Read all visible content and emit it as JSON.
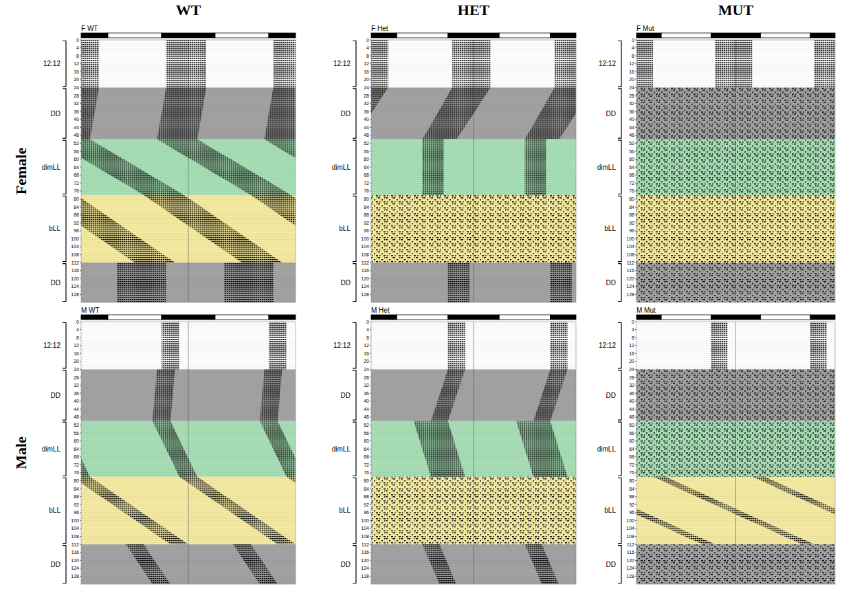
{
  "figure": {
    "column_labels": [
      "WT",
      "HET",
      "MUT"
    ],
    "row_labels": [
      "Female",
      "Male"
    ]
  },
  "chart_data": [
    {
      "type": "actogram",
      "title": "F WT",
      "xlim": [
        0,
        48
      ],
      "ylim": [
        0,
        132
      ],
      "tick_labels": "y",
      "yticks": [
        0,
        4,
        8,
        12,
        16,
        20,
        24,
        28,
        32,
        36,
        40,
        44,
        48,
        52,
        56,
        60,
        64,
        68,
        72,
        76,
        80,
        84,
        88,
        92,
        96,
        100,
        104,
        108,
        112,
        116,
        120,
        124,
        128
      ],
      "light_bar": [
        {
          "start": 0,
          "end": 6,
          "color": "#000000"
        },
        {
          "start": 6,
          "end": 18,
          "color": "#ffffff"
        },
        {
          "start": 18,
          "end": 30,
          "color": "#000000"
        },
        {
          "start": 30,
          "end": 42,
          "color": "#ffffff"
        },
        {
          "start": 42,
          "end": 48,
          "color": "#000000"
        }
      ],
      "sections": [
        {
          "label": "12:12",
          "start": 0,
          "end": 24,
          "color": "#ffffff"
        },
        {
          "label": "DD",
          "start": 24,
          "end": 50,
          "color": "#a3a3a3"
        },
        {
          "label": "dimLL",
          "start": 50,
          "end": 78,
          "color": "#a8dfb6"
        },
        {
          "label": "bLL",
          "start": 78,
          "end": 112,
          "color": "#f6eba2"
        },
        {
          "label": "DD",
          "start": 112,
          "end": 132,
          "color": "#a3a3a3"
        }
      ],
      "activity": [
        {
          "type": "band",
          "days": [
            0,
            24
          ],
          "onset": [
            19,
            19
          ],
          "offset": [
            28,
            28
          ]
        },
        {
          "type": "band",
          "days": [
            24,
            50
          ],
          "onset": [
            19,
            17
          ],
          "offset": [
            28,
            26
          ]
        },
        {
          "type": "band",
          "days": [
            50,
            78
          ],
          "onset": [
            17,
            38
          ],
          "offset": [
            26,
            47
          ]
        },
        {
          "type": "band",
          "days": [
            78,
            112
          ],
          "onset": [
            38,
            60
          ],
          "offset": [
            47,
            69
          ]
        },
        {
          "type": "band",
          "days": [
            112,
            132
          ],
          "onset": [
            8,
            8
          ],
          "offset": [
            19,
            19
          ]
        }
      ]
    },
    {
      "type": "actogram",
      "title": "F Het",
      "xlim": [
        0,
        48
      ],
      "ylim": [
        0,
        132
      ],
      "tick_labels": "y",
      "yticks": [
        0,
        4,
        8,
        12,
        16,
        20,
        24,
        28,
        32,
        36,
        40,
        44,
        48,
        52,
        56,
        60,
        64,
        68,
        72,
        76,
        80,
        84,
        88,
        92,
        96,
        100,
        104,
        108,
        112,
        116,
        120,
        124,
        128
      ],
      "light_bar": [
        {
          "start": 0,
          "end": 6,
          "color": "#000000"
        },
        {
          "start": 6,
          "end": 18,
          "color": "#ffffff"
        },
        {
          "start": 18,
          "end": 30,
          "color": "#000000"
        },
        {
          "start": 30,
          "end": 42,
          "color": "#ffffff"
        },
        {
          "start": 42,
          "end": 48,
          "color": "#000000"
        }
      ],
      "sections": [
        {
          "label": "12:12",
          "start": 0,
          "end": 24,
          "color": "#ffffff"
        },
        {
          "label": "DD",
          "start": 24,
          "end": 50,
          "color": "#a3a3a3"
        },
        {
          "label": "dimLL",
          "start": 50,
          "end": 78,
          "color": "#a8dfb6"
        },
        {
          "label": "bLL",
          "start": 78,
          "end": 112,
          "color": "#f6eba2"
        },
        {
          "label": "DD",
          "start": 112,
          "end": 132,
          "color": "#a3a3a3"
        }
      ],
      "activity": [
        {
          "type": "band",
          "days": [
            0,
            24
          ],
          "onset": [
            19,
            19
          ],
          "offset": [
            28,
            28
          ]
        },
        {
          "type": "band",
          "days": [
            24,
            50
          ],
          "onset": [
            19,
            12
          ],
          "offset": [
            28,
            20
          ]
        },
        {
          "type": "band",
          "days": [
            50,
            78
          ],
          "onset": [
            12,
            12
          ],
          "offset": [
            17,
            17
          ]
        },
        {
          "type": "diffuse",
          "days": [
            78,
            112
          ]
        },
        {
          "type": "band",
          "days": [
            112,
            132
          ],
          "onset": [
            18,
            18
          ],
          "offset": [
            23,
            23
          ]
        }
      ]
    },
    {
      "type": "actogram",
      "title": "F Mut",
      "xlim": [
        0,
        48
      ],
      "ylim": [
        0,
        132
      ],
      "tick_labels": "y",
      "yticks": [
        0,
        4,
        8,
        12,
        16,
        20,
        24,
        28,
        32,
        36,
        40,
        44,
        48,
        52,
        56,
        60,
        64,
        68,
        72,
        76,
        80,
        84,
        88,
        92,
        96,
        100,
        104,
        108,
        112,
        116,
        120,
        124,
        128
      ],
      "light_bar": [
        {
          "start": 0,
          "end": 6,
          "color": "#000000"
        },
        {
          "start": 6,
          "end": 18,
          "color": "#ffffff"
        },
        {
          "start": 18,
          "end": 30,
          "color": "#000000"
        },
        {
          "start": 30,
          "end": 42,
          "color": "#ffffff"
        },
        {
          "start": 42,
          "end": 48,
          "color": "#000000"
        }
      ],
      "sections": [
        {
          "label": "12:12",
          "start": 0,
          "end": 24,
          "color": "#ffffff"
        },
        {
          "label": "DD",
          "start": 24,
          "end": 50,
          "color": "#a3a3a3"
        },
        {
          "label": "dimLL",
          "start": 50,
          "end": 78,
          "color": "#a8dfb6"
        },
        {
          "label": "bLL",
          "start": 78,
          "end": 112,
          "color": "#f6eba2"
        },
        {
          "label": "DD",
          "start": 112,
          "end": 132,
          "color": "#a3a3a3"
        }
      ],
      "activity": [
        {
          "type": "band",
          "days": [
            0,
            24
          ],
          "onset": [
            19,
            19
          ],
          "offset": [
            28,
            28
          ]
        },
        {
          "type": "diffuse",
          "days": [
            24,
            50
          ]
        },
        {
          "type": "diffuse",
          "days": [
            50,
            78
          ]
        },
        {
          "type": "diffuse",
          "days": [
            78,
            112
          ]
        },
        {
          "type": "diffuse",
          "days": [
            112,
            132
          ]
        }
      ]
    },
    {
      "type": "actogram",
      "title": "M WT",
      "xlim": [
        0,
        48
      ],
      "ylim": [
        0,
        132
      ],
      "tick_labels": "y",
      "yticks": [
        0,
        4,
        8,
        12,
        16,
        20,
        24,
        28,
        32,
        36,
        40,
        44,
        48,
        52,
        56,
        60,
        64,
        68,
        72,
        76,
        80,
        84,
        88,
        92,
        96,
        100,
        104,
        108,
        112,
        116,
        120,
        124,
        128
      ],
      "light_bar": [
        {
          "start": 0,
          "end": 6,
          "color": "#000000"
        },
        {
          "start": 6,
          "end": 18,
          "color": "#ffffff"
        },
        {
          "start": 18,
          "end": 30,
          "color": "#000000"
        },
        {
          "start": 30,
          "end": 42,
          "color": "#ffffff"
        },
        {
          "start": 42,
          "end": 48,
          "color": "#000000"
        }
      ],
      "sections": [
        {
          "label": "12:12",
          "start": 0,
          "end": 24,
          "color": "#ffffff"
        },
        {
          "label": "DD",
          "start": 24,
          "end": 50,
          "color": "#a3a3a3"
        },
        {
          "label": "dimLL",
          "start": 50,
          "end": 78,
          "color": "#a8dfb6"
        },
        {
          "label": "bLL",
          "start": 78,
          "end": 112,
          "color": "#f6eba2"
        },
        {
          "label": "DD",
          "start": 112,
          "end": 132,
          "color": "#a3a3a3"
        }
      ],
      "activity": [
        {
          "type": "band",
          "days": [
            0,
            24
          ],
          "onset": [
            18,
            18
          ],
          "offset": [
            22,
            22
          ]
        },
        {
          "type": "band",
          "days": [
            24,
            50
          ],
          "onset": [
            17,
            16
          ],
          "offset": [
            21,
            20
          ]
        },
        {
          "type": "band",
          "days": [
            50,
            78
          ],
          "onset": [
            16,
            22
          ],
          "offset": [
            20,
            26
          ]
        },
        {
          "type": "band",
          "days": [
            78,
            112
          ],
          "onset": [
            22,
            44
          ],
          "offset": [
            26,
            48
          ]
        },
        {
          "type": "band",
          "days": [
            112,
            132
          ],
          "onset": [
            10,
            16
          ],
          "offset": [
            14,
            20
          ]
        }
      ]
    },
    {
      "type": "actogram",
      "title": "M Het",
      "xlim": [
        0,
        48
      ],
      "ylim": [
        0,
        132
      ],
      "tick_labels": "y",
      "yticks": [
        0,
        4,
        8,
        12,
        16,
        20,
        24,
        28,
        32,
        36,
        40,
        44,
        48,
        52,
        56,
        60,
        64,
        68,
        72,
        76,
        80,
        84,
        88,
        92,
        96,
        100,
        104,
        108,
        112,
        116,
        120,
        124,
        128
      ],
      "light_bar": [
        {
          "start": 0,
          "end": 6,
          "color": "#000000"
        },
        {
          "start": 6,
          "end": 18,
          "color": "#ffffff"
        },
        {
          "start": 18,
          "end": 30,
          "color": "#000000"
        },
        {
          "start": 30,
          "end": 42,
          "color": "#ffffff"
        },
        {
          "start": 42,
          "end": 48,
          "color": "#000000"
        }
      ],
      "sections": [
        {
          "label": "12:12",
          "start": 0,
          "end": 24,
          "color": "#ffffff"
        },
        {
          "label": "DD",
          "start": 24,
          "end": 50,
          "color": "#a3a3a3"
        },
        {
          "label": "dimLL",
          "start": 50,
          "end": 78,
          "color": "#a8dfb6"
        },
        {
          "label": "bLL",
          "start": 78,
          "end": 112,
          "color": "#f6eba2"
        },
        {
          "label": "DD",
          "start": 112,
          "end": 132,
          "color": "#a3a3a3"
        }
      ],
      "activity": [
        {
          "type": "band",
          "days": [
            0,
            24
          ],
          "onset": [
            18,
            18
          ],
          "offset": [
            22,
            22
          ]
        },
        {
          "type": "band",
          "days": [
            24,
            50
          ],
          "onset": [
            18,
            14
          ],
          "offset": [
            22,
            18
          ]
        },
        {
          "type": "band",
          "days": [
            50,
            78
          ],
          "onset": [
            10,
            14
          ],
          "offset": [
            18,
            22
          ]
        },
        {
          "type": "diffuse",
          "days": [
            78,
            112
          ]
        },
        {
          "type": "band",
          "days": [
            112,
            132
          ],
          "onset": [
            12,
            16
          ],
          "offset": [
            16,
            20
          ]
        }
      ]
    },
    {
      "type": "actogram",
      "title": "M Mut",
      "xlim": [
        0,
        48
      ],
      "ylim": [
        0,
        132
      ],
      "tick_labels": "y",
      "yticks": [
        0,
        4,
        8,
        12,
        16,
        20,
        24,
        28,
        32,
        36,
        40,
        44,
        48,
        52,
        56,
        60,
        64,
        68,
        72,
        76,
        80,
        84,
        88,
        92,
        96,
        100,
        104,
        108,
        112,
        116,
        120,
        124,
        128
      ],
      "light_bar": [
        {
          "start": 0,
          "end": 6,
          "color": "#000000"
        },
        {
          "start": 6,
          "end": 18,
          "color": "#ffffff"
        },
        {
          "start": 18,
          "end": 30,
          "color": "#000000"
        },
        {
          "start": 30,
          "end": 42,
          "color": "#ffffff"
        },
        {
          "start": 42,
          "end": 48,
          "color": "#000000"
        }
      ],
      "sections": [
        {
          "label": "12:12",
          "start": 0,
          "end": 24,
          "color": "#ffffff"
        },
        {
          "label": "DD",
          "start": 24,
          "end": 50,
          "color": "#a3a3a3"
        },
        {
          "label": "dimLL",
          "start": 50,
          "end": 78,
          "color": "#a8dfb6"
        },
        {
          "label": "bLL",
          "start": 78,
          "end": 112,
          "color": "#f6eba2"
        },
        {
          "label": "DD",
          "start": 112,
          "end": 132,
          "color": "#a3a3a3"
        }
      ],
      "activity": [
        {
          "type": "band",
          "days": [
            0,
            24
          ],
          "onset": [
            18,
            18
          ],
          "offset": [
            22,
            22
          ]
        },
        {
          "type": "diffuse",
          "days": [
            24,
            50
          ]
        },
        {
          "type": "diffuse",
          "days": [
            50,
            78
          ]
        },
        {
          "type": "band",
          "days": [
            78,
            112
          ],
          "onset": [
            4,
            40
          ],
          "offset": [
            7,
            43
          ]
        },
        {
          "type": "diffuse",
          "days": [
            112,
            132
          ]
        }
      ]
    }
  ]
}
